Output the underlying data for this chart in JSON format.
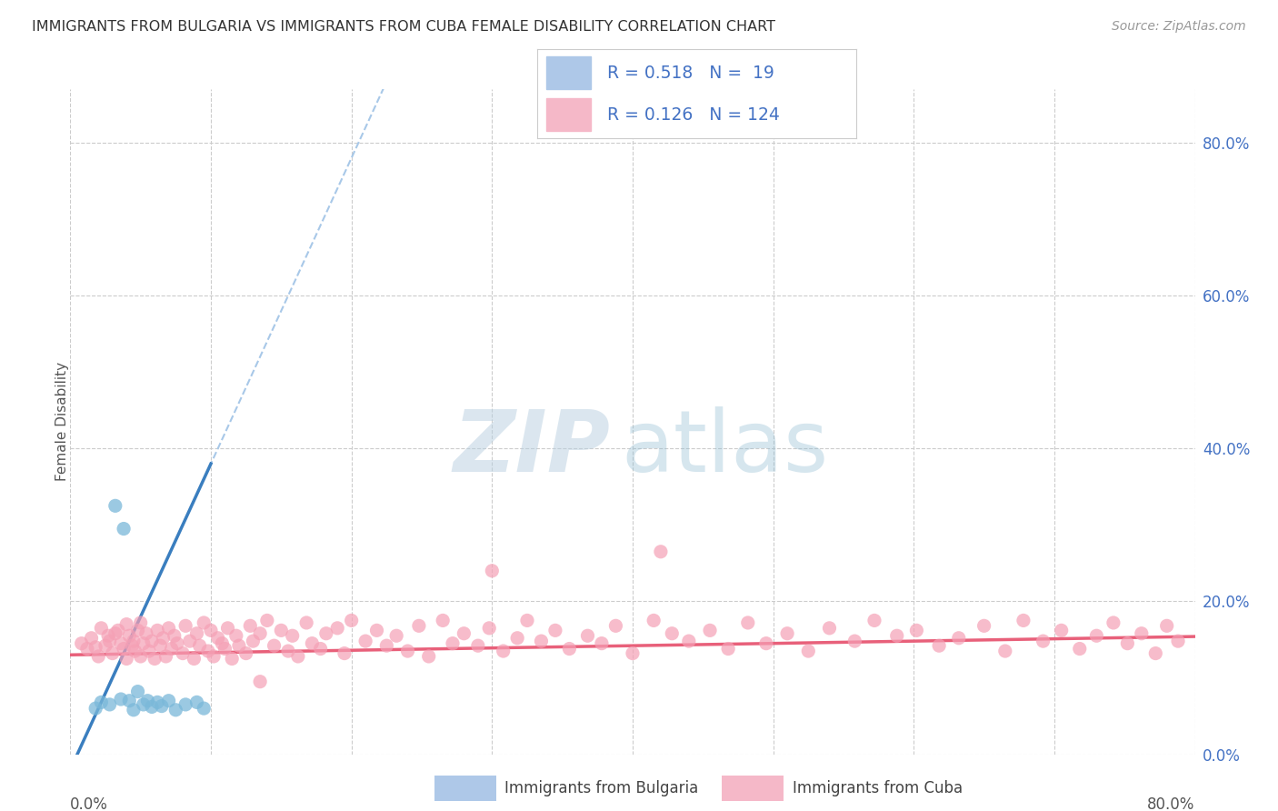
{
  "title": "IMMIGRANTS FROM BULGARIA VS IMMIGRANTS FROM CUBA FEMALE DISABILITY CORRELATION CHART",
  "source": "Source: ZipAtlas.com",
  "ylabel": "Female Disability",
  "xlim": [
    0.0,
    0.8
  ],
  "ylim": [
    0.0,
    0.87
  ],
  "background_color": "#ffffff",
  "grid_color": "#cccccc",
  "bulgaria_color": "#7ab8d9",
  "cuba_color": "#f5a0b5",
  "bulgaria_line_color": "#3a7ebf",
  "bulgaria_dash_color": "#a8c8e8",
  "cuba_line_color": "#e8607a",
  "right_tick_color": "#4472c4",
  "bottom_legend_label1": "Immigrants from Bulgaria",
  "bottom_legend_label2": "Immigrants from Cuba",
  "legend_text1": "R = 0.518   N =  19",
  "legend_text2": "R = 0.126   N = 124",
  "watermark_zip": "ZIP",
  "watermark_atlas": "atlas",
  "bulgaria_x": [
    0.018,
    0.022,
    0.028,
    0.032,
    0.036,
    0.038,
    0.042,
    0.045,
    0.048,
    0.052,
    0.055,
    0.058,
    0.062,
    0.065,
    0.07,
    0.075,
    0.082,
    0.09,
    0.095
  ],
  "bulgaria_y": [
    0.06,
    0.068,
    0.065,
    0.325,
    0.072,
    0.295,
    0.07,
    0.058,
    0.082,
    0.065,
    0.07,
    0.062,
    0.068,
    0.063,
    0.07,
    0.058,
    0.065,
    0.068,
    0.06
  ],
  "cuba_x": [
    0.008,
    0.012,
    0.015,
    0.018,
    0.02,
    0.022,
    0.025,
    0.027,
    0.028,
    0.03,
    0.032,
    0.034,
    0.036,
    0.038,
    0.04,
    0.04,
    0.042,
    0.044,
    0.045,
    0.046,
    0.048,
    0.05,
    0.05,
    0.052,
    0.054,
    0.056,
    0.058,
    0.06,
    0.062,
    0.064,
    0.066,
    0.068,
    0.07,
    0.072,
    0.074,
    0.076,
    0.08,
    0.082,
    0.085,
    0.088,
    0.09,
    0.092,
    0.095,
    0.098,
    0.1,
    0.102,
    0.105,
    0.108,
    0.11,
    0.112,
    0.115,
    0.118,
    0.12,
    0.125,
    0.128,
    0.13,
    0.135,
    0.14,
    0.145,
    0.15,
    0.155,
    0.158,
    0.162,
    0.168,
    0.172,
    0.178,
    0.182,
    0.19,
    0.195,
    0.2,
    0.21,
    0.218,
    0.225,
    0.232,
    0.24,
    0.248,
    0.255,
    0.265,
    0.272,
    0.28,
    0.29,
    0.298,
    0.308,
    0.318,
    0.325,
    0.335,
    0.345,
    0.355,
    0.368,
    0.378,
    0.388,
    0.4,
    0.415,
    0.428,
    0.44,
    0.455,
    0.468,
    0.482,
    0.495,
    0.51,
    0.525,
    0.54,
    0.558,
    0.572,
    0.588,
    0.602,
    0.618,
    0.632,
    0.65,
    0.665,
    0.678,
    0.692,
    0.705,
    0.718,
    0.73,
    0.742,
    0.752,
    0.762,
    0.772,
    0.78,
    0.788,
    0.3,
    0.42,
    0.135
  ],
  "cuba_y": [
    0.145,
    0.138,
    0.152,
    0.14,
    0.128,
    0.165,
    0.142,
    0.155,
    0.148,
    0.132,
    0.158,
    0.162,
    0.145,
    0.138,
    0.17,
    0.125,
    0.155,
    0.142,
    0.148,
    0.135,
    0.162,
    0.128,
    0.172,
    0.145,
    0.158,
    0.135,
    0.148,
    0.125,
    0.162,
    0.142,
    0.152,
    0.128,
    0.165,
    0.138,
    0.155,
    0.145,
    0.132,
    0.168,
    0.148,
    0.125,
    0.158,
    0.142,
    0.172,
    0.135,
    0.162,
    0.128,
    0.152,
    0.145,
    0.138,
    0.165,
    0.125,
    0.155,
    0.142,
    0.132,
    0.168,
    0.148,
    0.158,
    0.175,
    0.142,
    0.162,
    0.135,
    0.155,
    0.128,
    0.172,
    0.145,
    0.138,
    0.158,
    0.165,
    0.132,
    0.175,
    0.148,
    0.162,
    0.142,
    0.155,
    0.135,
    0.168,
    0.128,
    0.175,
    0.145,
    0.158,
    0.142,
    0.165,
    0.135,
    0.152,
    0.175,
    0.148,
    0.162,
    0.138,
    0.155,
    0.145,
    0.168,
    0.132,
    0.175,
    0.158,
    0.148,
    0.162,
    0.138,
    0.172,
    0.145,
    0.158,
    0.135,
    0.165,
    0.148,
    0.175,
    0.155,
    0.162,
    0.142,
    0.152,
    0.168,
    0.135,
    0.175,
    0.148,
    0.162,
    0.138,
    0.155,
    0.172,
    0.145,
    0.158,
    0.132,
    0.168,
    0.148,
    0.24,
    0.265,
    0.095
  ]
}
